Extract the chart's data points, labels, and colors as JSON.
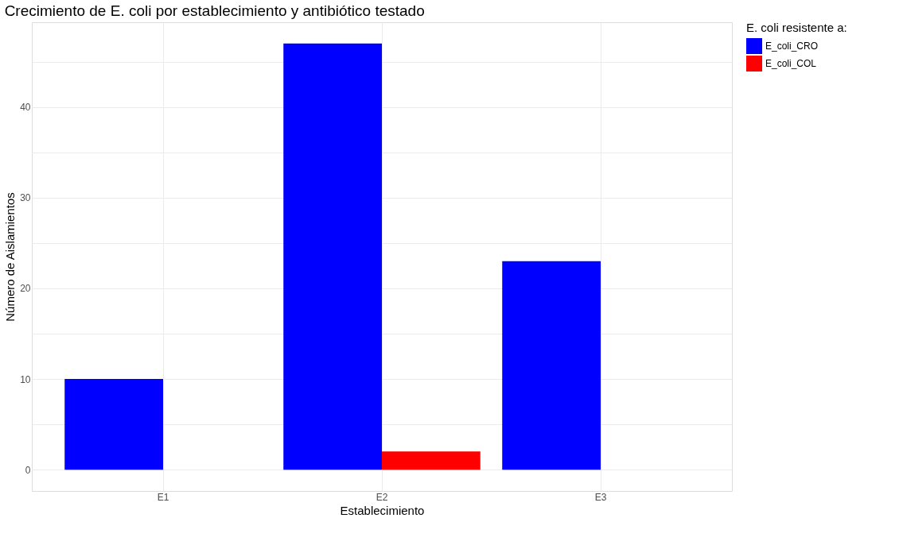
{
  "chart_data": {
    "type": "bar",
    "title": "Crecimiento de E. coli por establecimiento y antibiótico testado",
    "xlabel": "Establecimiento",
    "ylabel": "Número de Aislamientos",
    "legend_title": "E. coli resistente a:",
    "categories": [
      "E1",
      "E2",
      "E3"
    ],
    "series": [
      {
        "name": "E_coli_CRO",
        "color": "#0000ff",
        "values": [
          10,
          47,
          23
        ]
      },
      {
        "name": "E_coli_COL",
        "color": "#ff0000",
        "values": [
          null,
          2,
          null
        ]
      }
    ],
    "ylim": [
      -2.35,
      49.35
    ],
    "yticks": [
      0,
      {
        "value": 5,
        "label": null
      },
      10,
      {
        "value": 15,
        "label": null
      },
      20,
      {
        "value": 25,
        "label": null
      },
      30,
      {
        "value": 35,
        "label": null
      },
      40,
      {
        "value": 45,
        "label": null
      }
    ],
    "grid": true,
    "legend": "right"
  }
}
